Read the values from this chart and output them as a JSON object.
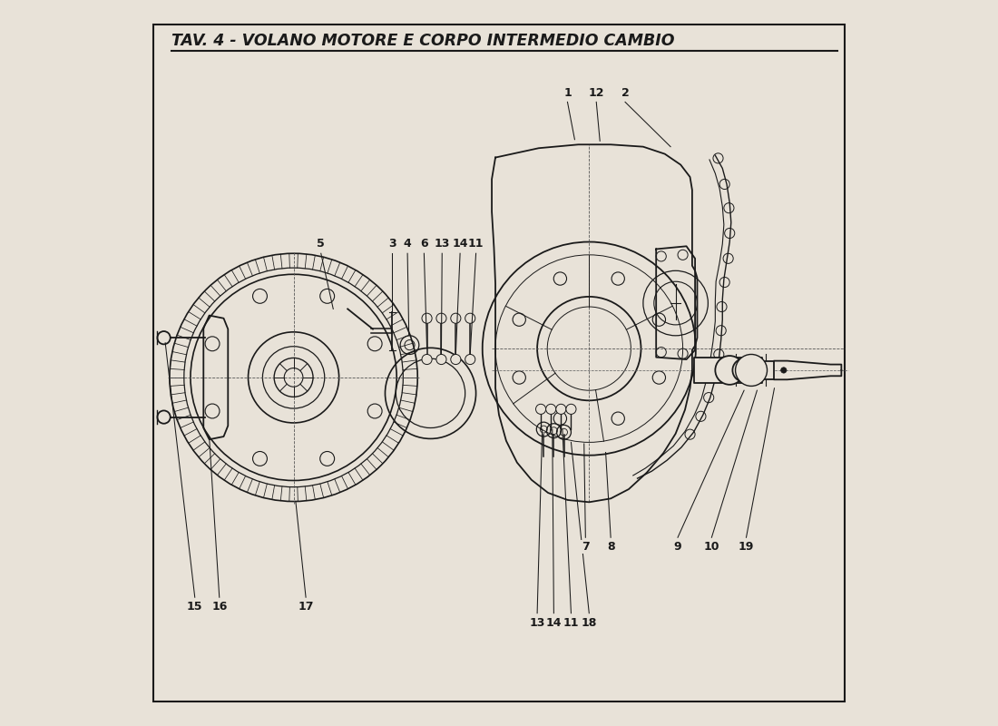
{
  "title": "TAV. 4 - VOLANO MOTORE E CORPO INTERMEDIO CAMBIO",
  "bg_color": "#e8e2d8",
  "line_color": "#1a1a1a",
  "fig_width": 11.0,
  "fig_height": 8.0,
  "dpi": 100
}
